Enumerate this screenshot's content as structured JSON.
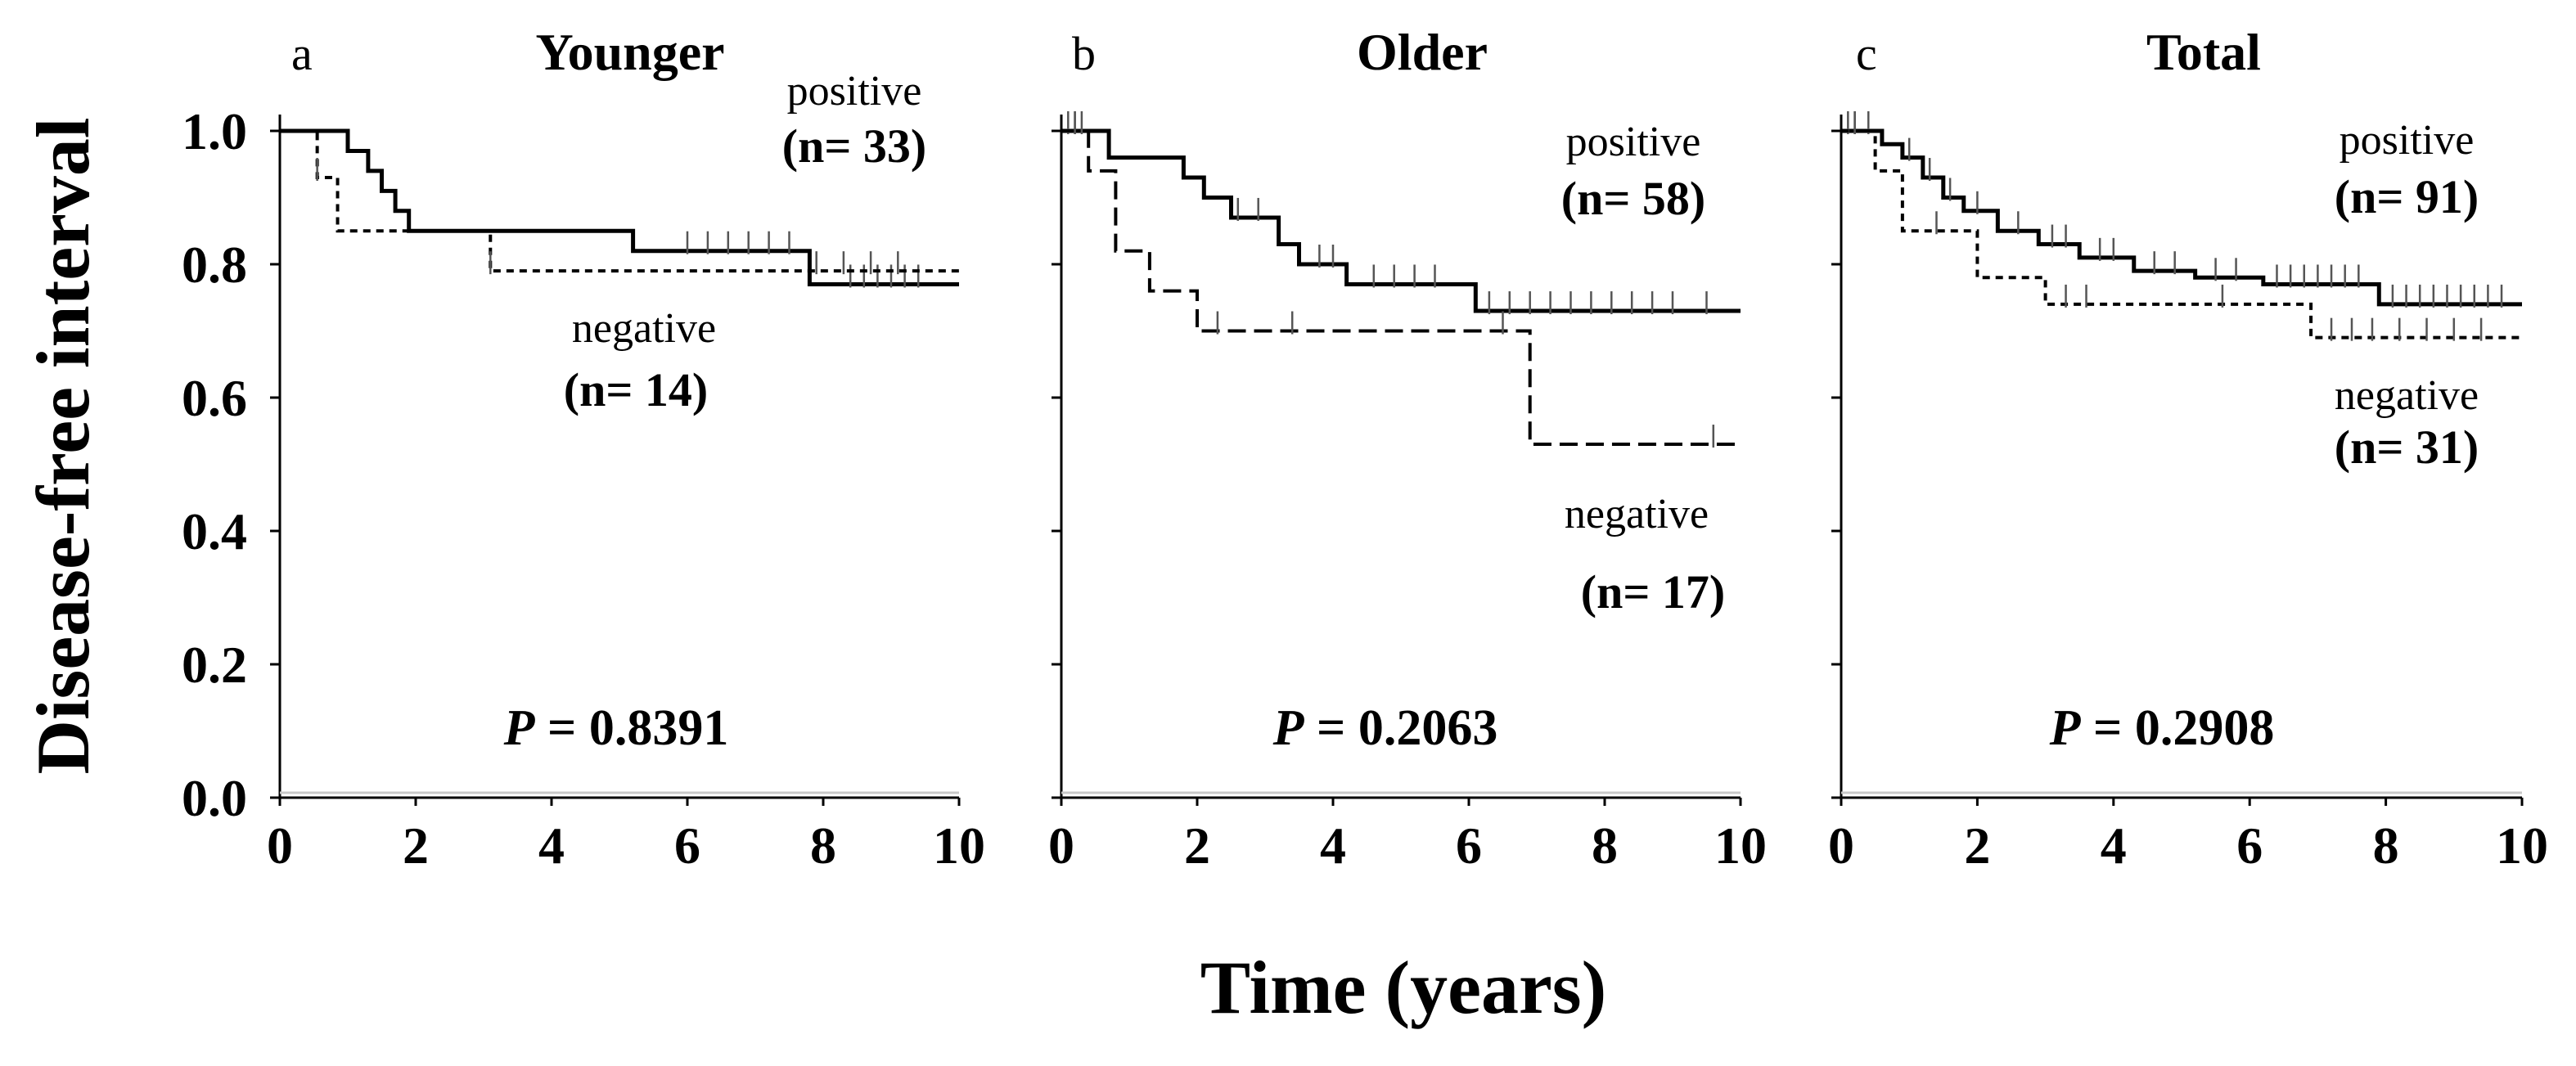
{
  "figure": {
    "ylabel": "Disease-free interval",
    "xlabel": "Time (years)"
  },
  "chart_data": [
    {
      "type": "line",
      "panel": "a",
      "title": "Younger",
      "xlim": [
        0,
        10
      ],
      "ylim": [
        0,
        1
      ],
      "xticks": [
        "0",
        "2",
        "4",
        "6",
        "8",
        "10"
      ],
      "yticks": [
        "0.0",
        "0.2",
        "0.4",
        "0.6",
        "0.8",
        "1.0"
      ],
      "p_label": "P",
      "p_value": "= 0.8391",
      "series": [
        {
          "name": "positive",
          "n_label": "(n= 33)",
          "style": "solid",
          "steps": [
            [
              0,
              1.0
            ],
            [
              1.0,
              0.97
            ],
            [
              1.3,
              0.94
            ],
            [
              1.5,
              0.91
            ],
            [
              1.7,
              0.88
            ],
            [
              1.9,
              0.85
            ],
            [
              5.2,
              0.82
            ],
            [
              7.8,
              0.77
            ],
            [
              10,
              0.77
            ]
          ],
          "censor": [
            6.0,
            6.3,
            6.6,
            6.9,
            7.2,
            7.5,
            8.4,
            8.6,
            8.8,
            9.0,
            9.2,
            9.4
          ]
        },
        {
          "name": "negative",
          "n_label": "(n= 14)",
          "style": "dotted",
          "steps": [
            [
              0,
              1.0
            ],
            [
              0.55,
              0.93
            ],
            [
              0.85,
              0.85
            ],
            [
              3.1,
              0.79
            ],
            [
              10,
              0.79
            ]
          ],
          "censor": [
            0.55,
            3.1,
            7.9,
            8.3,
            8.7,
            9.1
          ]
        }
      ]
    },
    {
      "type": "line",
      "panel": "b",
      "title": "Older",
      "xlim": [
        0,
        10
      ],
      "ylim": [
        0,
        1
      ],
      "xticks": [
        "0",
        "2",
        "4",
        "6",
        "8",
        "10"
      ],
      "yticks": [
        "0.0",
        "0.2",
        "0.4",
        "0.6",
        "0.8",
        "1.0"
      ],
      "p_label": "P",
      "p_value": "= 0.2063",
      "series": [
        {
          "name": "positive",
          "n_label": "(n= 58)",
          "style": "solid",
          "steps": [
            [
              0,
              1.0
            ],
            [
              0.7,
              0.96
            ],
            [
              1.8,
              0.93
            ],
            [
              2.1,
              0.9
            ],
            [
              2.5,
              0.87
            ],
            [
              3.2,
              0.83
            ],
            [
              3.5,
              0.8
            ],
            [
              4.2,
              0.77
            ],
            [
              6.1,
              0.73
            ],
            [
              10,
              0.73
            ]
          ],
          "censor": [
            0.1,
            0.2,
            0.3,
            2.6,
            2.9,
            3.8,
            4.0,
            4.6,
            4.9,
            5.2,
            5.5,
            6.3,
            6.6,
            6.9,
            7.2,
            7.5,
            7.8,
            8.1,
            8.4,
            8.7,
            9.0,
            9.5
          ]
        },
        {
          "name": "negative",
          "n_label": "(n= 17)",
          "style": "dashed",
          "steps": [
            [
              0,
              1.0
            ],
            [
              0.4,
              0.94
            ],
            [
              0.8,
              0.82
            ],
            [
              1.3,
              0.76
            ],
            [
              2.0,
              0.7
            ],
            [
              6.9,
              0.53
            ],
            [
              10,
              0.53
            ]
          ],
          "censor": [
            0.2,
            2.3,
            3.4,
            6.5,
            9.6
          ]
        }
      ]
    },
    {
      "type": "line",
      "panel": "c",
      "title": "Total",
      "xlim": [
        0,
        10
      ],
      "ylim": [
        0,
        1
      ],
      "xticks": [
        "0",
        "2",
        "4",
        "6",
        "8",
        "10"
      ],
      "yticks": [
        "0.0",
        "0.2",
        "0.4",
        "0.6",
        "0.8",
        "1.0"
      ],
      "p_label": "P",
      "p_value": "= 0.2908",
      "series": [
        {
          "name": "positive",
          "n_label": "(n= 91)",
          "style": "solid",
          "steps": [
            [
              0,
              1.0
            ],
            [
              0.6,
              0.98
            ],
            [
              0.9,
              0.96
            ],
            [
              1.2,
              0.93
            ],
            [
              1.5,
              0.9
            ],
            [
              1.8,
              0.88
            ],
            [
              2.3,
              0.85
            ],
            [
              2.9,
              0.83
            ],
            [
              3.5,
              0.81
            ],
            [
              4.3,
              0.79
            ],
            [
              5.2,
              0.78
            ],
            [
              6.2,
              0.77
            ],
            [
              7.9,
              0.74
            ],
            [
              10,
              0.74
            ]
          ],
          "censor": [
            0.1,
            0.2,
            0.4,
            1.0,
            1.3,
            1.6,
            2.0,
            2.6,
            3.1,
            3.3,
            3.8,
            4.0,
            4.6,
            4.9,
            5.5,
            5.8,
            6.4,
            6.6,
            6.8,
            7.0,
            7.2,
            7.4,
            7.6,
            8.1,
            8.3,
            8.5,
            8.7,
            8.9,
            9.1,
            9.3,
            9.5,
            9.7
          ]
        },
        {
          "name": "negative",
          "n_label": "(n= 31)",
          "style": "dotted",
          "steps": [
            [
              0,
              1.0
            ],
            [
              0.5,
              0.94
            ],
            [
              0.9,
              0.85
            ],
            [
              2.0,
              0.78
            ],
            [
              3.0,
              0.74
            ],
            [
              6.9,
              0.69
            ],
            [
              10,
              0.69
            ]
          ],
          "censor": [
            0.2,
            1.4,
            3.3,
            3.6,
            5.6,
            7.2,
            7.5,
            7.8,
            8.2,
            8.6,
            9.0,
            9.4
          ]
        }
      ]
    }
  ]
}
